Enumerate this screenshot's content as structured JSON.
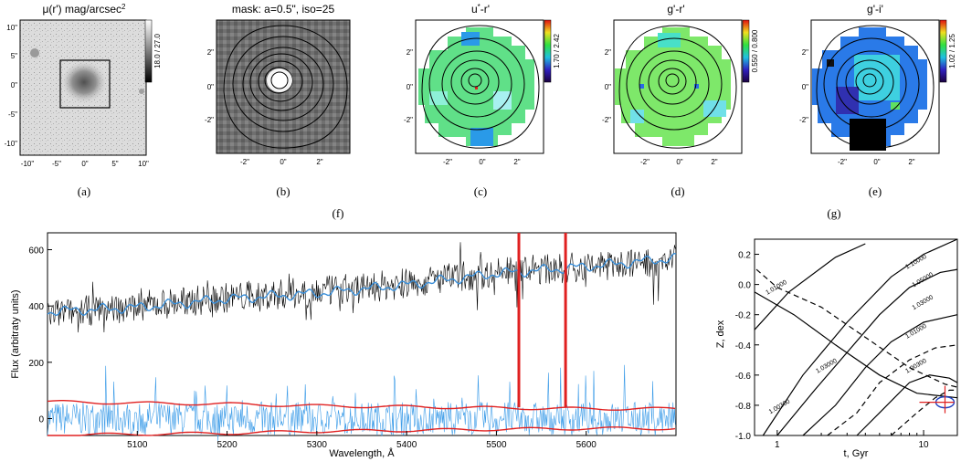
{
  "colors": {
    "spectrum_obs": "#000000",
    "spectrum_model": "#3a8fd9",
    "residual": "#3a9be8",
    "error_line": "#e02020",
    "ellipse": "#2040c0",
    "marker": "#e02020"
  },
  "panels": {
    "a": {
      "title": "μ(r') mag/arcsec",
      "title_sup": "2",
      "cbar_label": "18.0 / 27.0",
      "xticks": [
        "-10\"",
        "-5\"",
        "0\"",
        "5\"",
        "10\""
      ],
      "yticks": [
        "10\"",
        "5\"",
        "0\"",
        "-5\"",
        "-10\""
      ],
      "caption": "(a)"
    },
    "b": {
      "title": "mask: a=0.5\", iso=25",
      "xticks": [
        "-2\"",
        "0\"",
        "2\""
      ],
      "yticks": [
        "2\"",
        "0\"",
        "-2\""
      ],
      "caption": "(b)"
    },
    "c": {
      "title": "u",
      "title_sup": "*",
      "title_tail": "-r'",
      "cbar_label": "1.70 / 2.42",
      "xticks": [
        "-2\"",
        "0\"",
        "2\""
      ],
      "yticks": [
        "2\"",
        "0\"",
        "-2\""
      ],
      "caption": "(c)"
    },
    "d": {
      "title": "g'-r'",
      "cbar_label": "0.550 / 0.800",
      "xticks": [
        "-2\"",
        "0\"",
        "2\""
      ],
      "yticks": [
        "2\"",
        "0\"",
        "-2\""
      ],
      "caption": "(d)"
    },
    "e": {
      "title": "g'-i'",
      "cbar_label": "1.02 / 1.25",
      "xticks": [
        "-2\"",
        "0\"",
        "2\""
      ],
      "yticks": [
        "2\"",
        "0\"",
        "-2\""
      ],
      "caption": "(e)"
    }
  },
  "captions": {
    "f": "(f)",
    "g": "(g)"
  },
  "chart_data": [
    {
      "type": "line",
      "panel": "f",
      "xlabel": "Wavelength, Å",
      "ylabel": "Flux (arbitraty units)",
      "xlim": [
        5000,
        5700
      ],
      "ylim": [
        -60,
        660
      ],
      "xticks": [
        "5100",
        "5200",
        "5300",
        "5400",
        "5500",
        "5600"
      ],
      "yticks": [
        "0",
        "200",
        "400",
        "600"
      ],
      "series": [
        {
          "role": "observed",
          "x": [
            5000,
            5100,
            5200,
            5300,
            5400,
            5500,
            5600,
            5700
          ],
          "values": [
            370,
            400,
            430,
            450,
            480,
            520,
            540,
            565
          ]
        },
        {
          "role": "model",
          "x": [
            5000,
            5100,
            5200,
            5300,
            5400,
            5500,
            5600,
            5700
          ],
          "values": [
            380,
            395,
            425,
            445,
            475,
            515,
            540,
            570
          ]
        },
        {
          "role": "residual",
          "x": [
            5000,
            5700
          ],
          "values": [
            0,
            0
          ]
        },
        {
          "role": "error",
          "x": [
            5000,
            5100,
            5200,
            5300,
            5400,
            5500,
            5600,
            5700
          ],
          "values": [
            60,
            55,
            52,
            45,
            42,
            38,
            35,
            35
          ]
        }
      ],
      "spikes": [
        5525,
        5577
      ]
    },
    {
      "type": "contour",
      "panel": "g",
      "xlabel": "t, Gyr",
      "ylabel": "Z, dex",
      "xscale": "log",
      "xlim": [
        0.7,
        17
      ],
      "ylim": [
        -1.0,
        0.3
      ],
      "xticks": [
        "1",
        "10"
      ],
      "yticks": [
        "0.2",
        "0.0",
        "-0.2",
        "-0.4",
        "-0.6",
        "-0.8",
        "-1.0"
      ],
      "contour_labels": [
        "1.10000",
        "1.05000",
        "1.03000",
        "1.01000",
        "1.00300",
        "1.03000",
        "1.01000",
        "1.00300"
      ],
      "best_fit": {
        "t": 14,
        "Z": -0.78
      }
    }
  ]
}
